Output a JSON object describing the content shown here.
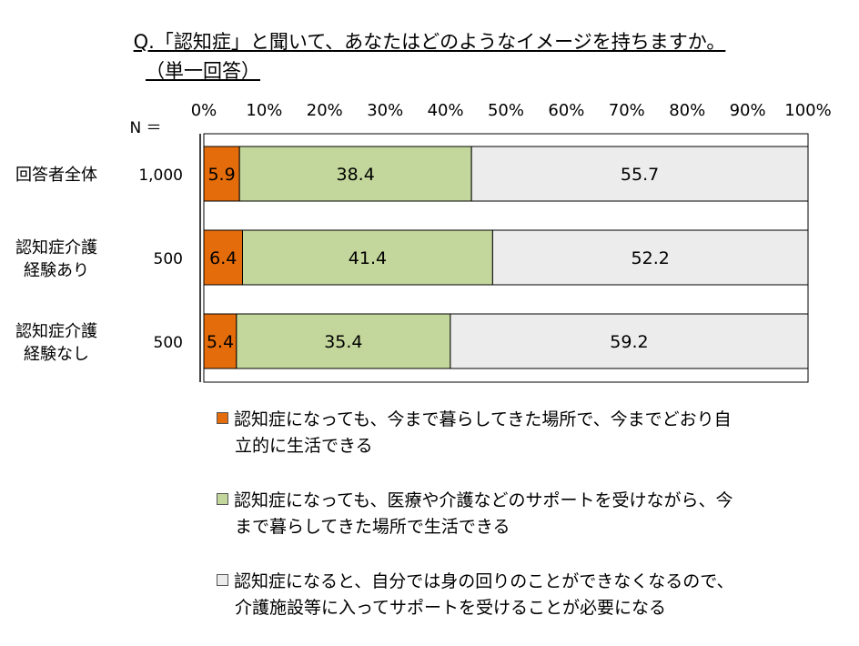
{
  "title_line1": "Q.「認知症」と聞いて、あなたはどのようなイメージを持ちますか。",
  "title_line2": "（単一回答）",
  "n_label": "N ＝",
  "chart_data": {
    "type": "bar",
    "orientation": "horizontal-stacked-100",
    "categories": [
      "回答者全体",
      "認知症介護\n経験あり",
      "認知症介護\n経験なし"
    ],
    "n_values": [
      "1,000",
      "500",
      "500"
    ],
    "x_ticks": [
      "0%",
      "10%",
      "20%",
      "30%",
      "40%",
      "50%",
      "60%",
      "70%",
      "80%",
      "90%",
      "100%"
    ],
    "xlim": [
      0,
      100
    ],
    "series": [
      {
        "name": "認知症になっても、今まで暮らしてきた場所で、今までどおり自立的に生活できる",
        "color": "#e46c0a",
        "values": [
          5.9,
          6.4,
          5.4
        ]
      },
      {
        "name": "認知症になっても、医療や介護などのサポートを受けながら、今まで暮らしてきた場所で生活できる",
        "color": "#c3d69b",
        "values": [
          38.4,
          41.4,
          35.4
        ]
      },
      {
        "name": "認知症になると、自分では身の回りのことができなくなるので、介護施設等に入ってサポートを受けることが必要になる",
        "color": "#ececec",
        "values": [
          55.7,
          52.2,
          59.2
        ]
      }
    ],
    "legend_lines": [
      [
        "認知症になっても、今まで暮らしてきた場所で、今までどおり自",
        "立的に生活できる"
      ],
      [
        "認知症になっても、医療や介護などのサポートを受けながら、今",
        "まで暮らしてきた場所で生活できる"
      ],
      [
        "認知症になると、自分では身の回りのことができなくなるので、",
        "介護施設等に入ってサポートを受けることが必要になる"
      ]
    ]
  }
}
